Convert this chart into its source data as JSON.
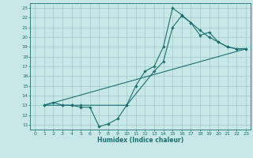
{
  "background_color": "#c8e8e8",
  "grid_color": "#a0c8c8",
  "line_color": "#1a7070",
  "xlabel": "Humidex (Indice chaleur)",
  "xlim": [
    -0.5,
    23.5
  ],
  "ylim": [
    10.5,
    23.5
  ],
  "yticks": [
    11,
    12,
    13,
    14,
    15,
    16,
    17,
    18,
    19,
    20,
    21,
    22,
    23
  ],
  "xticks": [
    0,
    1,
    2,
    3,
    4,
    5,
    6,
    7,
    8,
    9,
    10,
    11,
    12,
    13,
    14,
    15,
    16,
    17,
    18,
    19,
    20,
    21,
    22,
    23
  ],
  "line1_x": [
    1,
    2,
    3,
    4,
    5,
    6,
    7,
    8,
    9,
    10,
    11,
    12,
    13,
    14,
    15,
    16,
    17,
    18,
    19,
    20,
    21,
    22,
    23
  ],
  "line1_y": [
    13.0,
    13.3,
    13.0,
    13.0,
    12.8,
    12.8,
    10.8,
    11.1,
    11.6,
    13.0,
    15.0,
    16.5,
    17.0,
    19.0,
    23.0,
    22.3,
    21.5,
    20.7,
    20.0,
    19.5,
    19.0,
    18.8,
    18.8
  ],
  "line2_x": [
    1,
    3,
    4,
    5,
    10,
    13,
    14,
    15,
    16,
    17,
    18,
    19,
    20,
    21,
    22,
    23
  ],
  "line2_y": [
    13.0,
    13.0,
    13.0,
    13.0,
    13.0,
    16.5,
    17.5,
    21.0,
    22.2,
    21.5,
    20.2,
    20.5,
    19.5,
    19.0,
    18.8,
    18.8
  ],
  "line3_x": [
    1,
    23
  ],
  "line3_y": [
    13.0,
    18.8
  ]
}
